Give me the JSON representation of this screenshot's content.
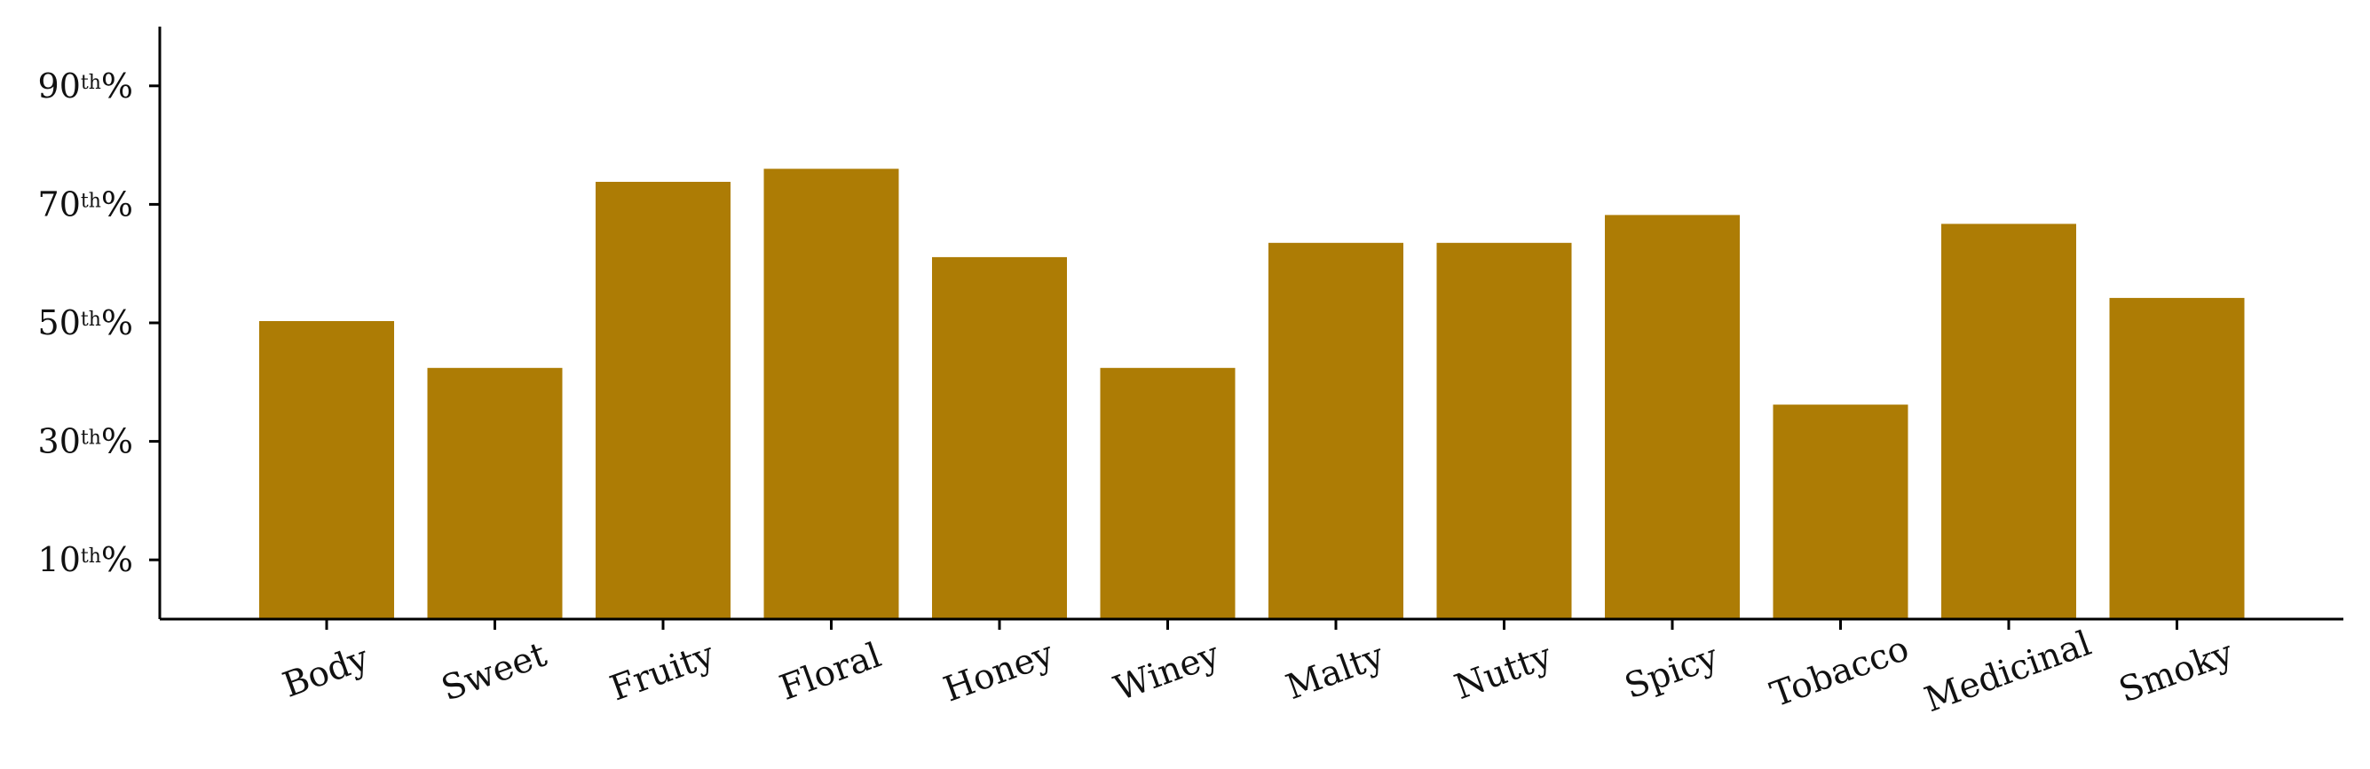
{
  "chart_data": {
    "type": "bar",
    "title": "",
    "xlabel": "",
    "ylabel": "",
    "categories": [
      "Body",
      "Sweet",
      "Fruity",
      "Floral",
      "Honey",
      "Winey",
      "Malty",
      "Nutty",
      "Spicy",
      "Tobacco",
      "Medicinal",
      "Smoky"
    ],
    "values": [
      50.3,
      42.4,
      73.8,
      76.0,
      61.1,
      42.4,
      63.5,
      63.5,
      68.2,
      36.2,
      66.7,
      54.2
    ],
    "bar_color": "#AD7C05",
    "ylim": [
      0,
      100
    ],
    "yticks": [
      {
        "value": 10,
        "label": "10",
        "suffix": "th",
        "unit": "%"
      },
      {
        "value": 30,
        "label": "30",
        "suffix": "th",
        "unit": "%"
      },
      {
        "value": 50,
        "label": "50",
        "suffix": "th",
        "unit": "%"
      },
      {
        "value": 70,
        "label": "70",
        "suffix": "th",
        "unit": "%"
      },
      {
        "value": 90,
        "label": "90",
        "suffix": "th",
        "unit": "%"
      }
    ],
    "xtick_rotation_deg": -20,
    "grid": false,
    "legend": "none"
  }
}
